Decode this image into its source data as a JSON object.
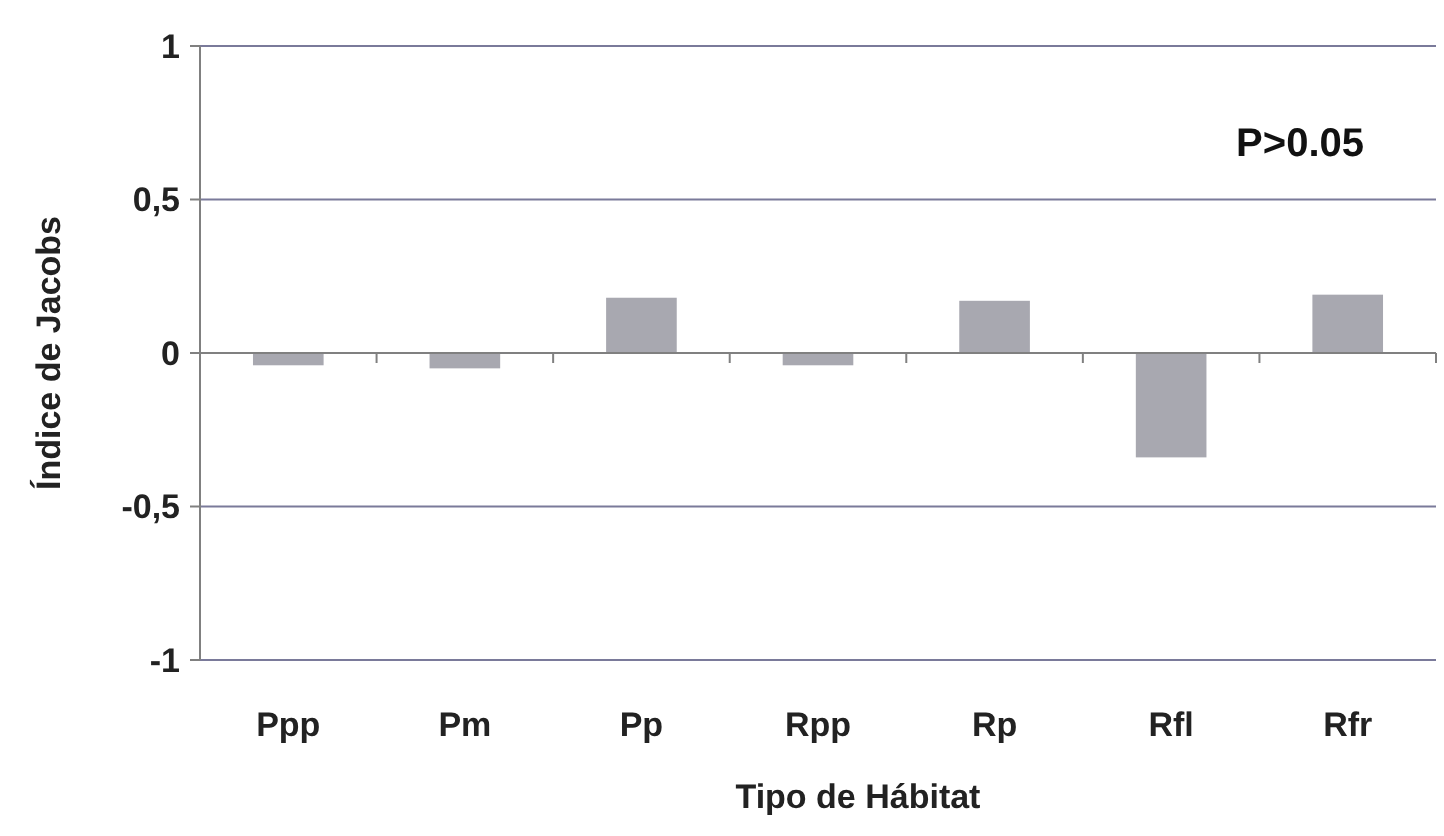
{
  "chart_data": {
    "type": "bar",
    "xlabel": "Tipo de Hábitat",
    "ylabel": "Índice de Jacobs",
    "categories": [
      "Ppp",
      "Pm",
      "Pp",
      "Rpp",
      "Rp",
      "Rfl",
      "Rfr"
    ],
    "values": [
      -0.04,
      -0.05,
      0.18,
      -0.04,
      0.17,
      -0.34,
      0.19
    ],
    "color": "#a8a8b0",
    "ylim": [
      -1,
      1
    ],
    "yticks": [
      {
        "value": -1,
        "label": "-1"
      },
      {
        "value": -0.5,
        "label": "-0,5"
      },
      {
        "value": 0,
        "label": "0"
      },
      {
        "value": 0.5,
        "label": "0,5"
      },
      {
        "value": 1,
        "label": "1"
      }
    ],
    "grid": "y",
    "annotations": [
      "P>0.05"
    ]
  }
}
